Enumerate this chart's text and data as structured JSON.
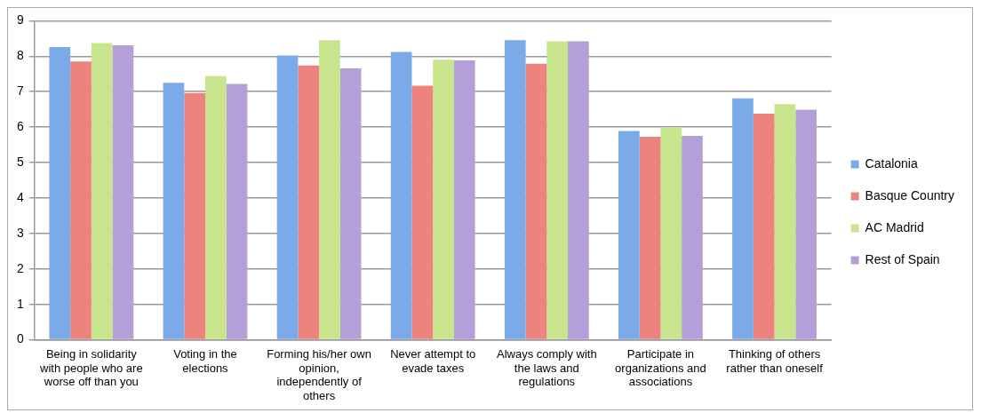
{
  "chart_data": {
    "type": "bar",
    "categories": [
      "Being in solidarity with people who are worse off than you",
      "Voting in the elections",
      "Forming his/her own opinion, independently of others",
      "Never attempt to evade taxes",
      "Always comply with the laws and regulations",
      "Participate in organizations and associations",
      "Thinking of others rather than oneself"
    ],
    "series": [
      {
        "name": "Catalonia",
        "color": "#7aaae8",
        "values": [
          8.26,
          7.25,
          8.02,
          8.12,
          8.45,
          5.89,
          6.81
        ]
      },
      {
        "name": "Basque Country",
        "color": "#ec837c",
        "values": [
          7.85,
          6.96,
          7.74,
          7.17,
          7.79,
          5.73,
          6.38
        ]
      },
      {
        "name": "AC Madrid",
        "color": "#c8e48c",
        "values": [
          8.37,
          7.44,
          8.45,
          7.9,
          8.42,
          5.99,
          6.65
        ]
      },
      {
        "name": "Rest of Spain",
        "color": "#b49fd8",
        "values": [
          8.31,
          7.22,
          7.66,
          7.88,
          8.42,
          5.75,
          6.49
        ]
      }
    ],
    "ylim": [
      0,
      9
    ],
    "yticks": [
      0,
      1,
      2,
      3,
      4,
      5,
      6,
      7,
      8,
      9
    ],
    "grid": "y",
    "legend": "right"
  }
}
